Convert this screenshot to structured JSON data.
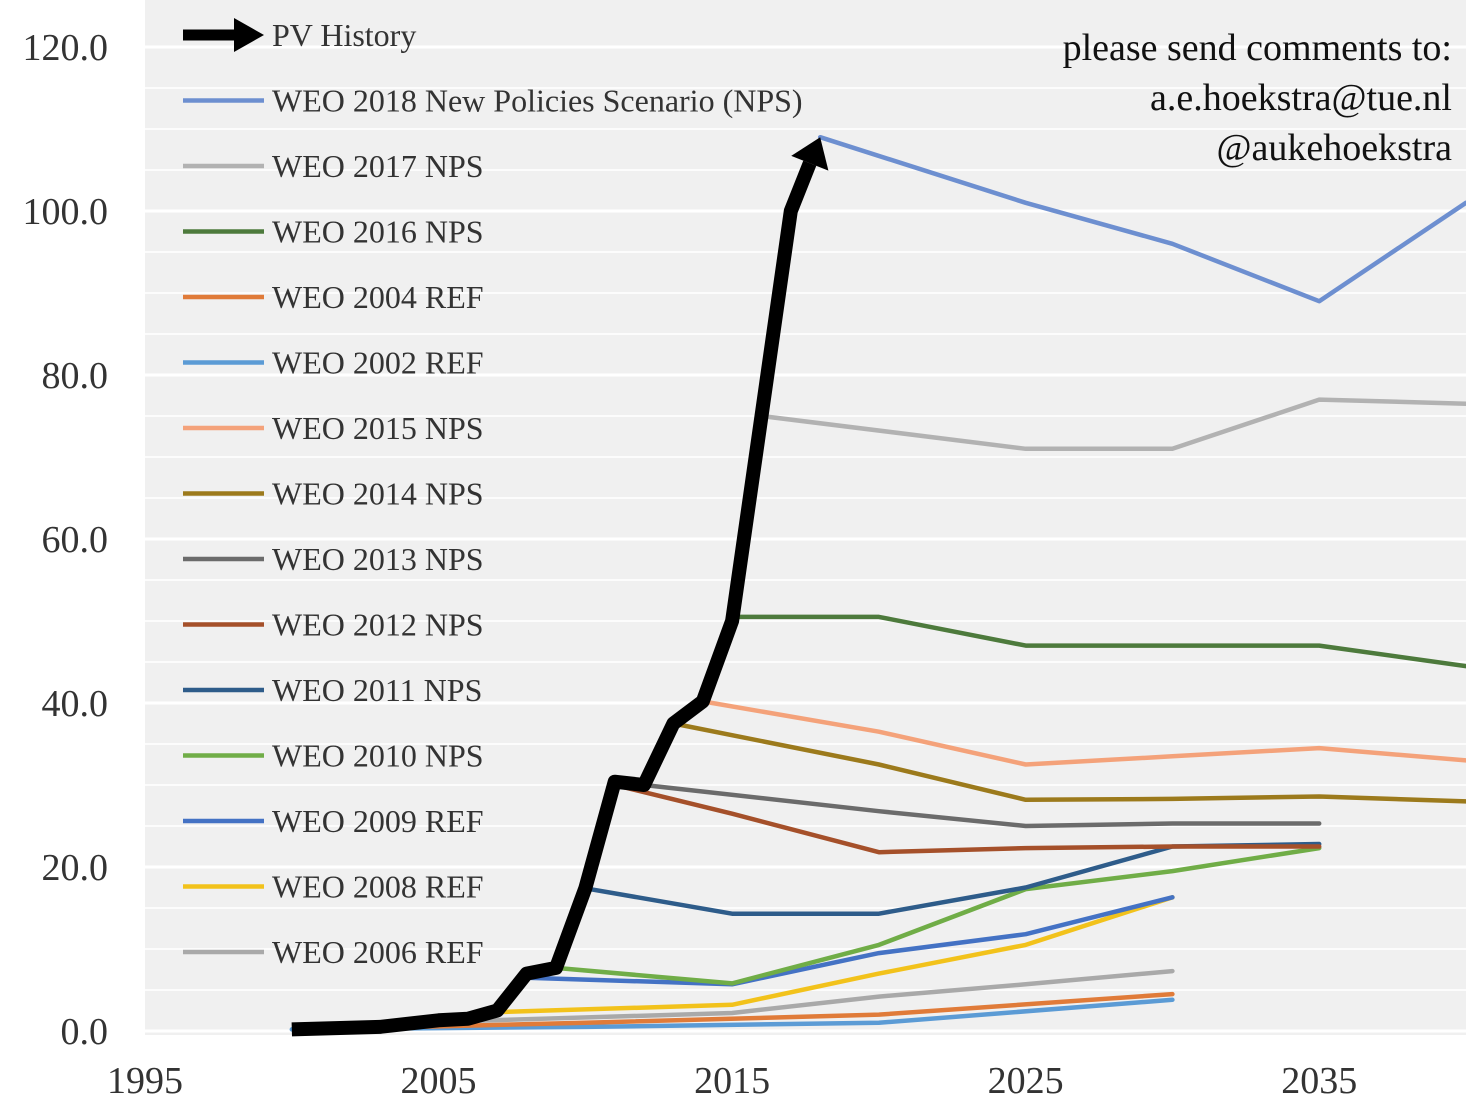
{
  "chart_data": {
    "type": "line",
    "title": "",
    "xlabel": "",
    "ylabel": "",
    "xlim": [
      1995,
      2040
    ],
    "ylim": [
      0,
      120
    ],
    "x_ticks": [
      "1995",
      "2005",
      "2015",
      "2025",
      "2035"
    ],
    "y_ticks": [
      "0.0",
      "20.0",
      "40.0",
      "60.0",
      "80.0",
      "100.0",
      "120.0"
    ],
    "grid": "horizontal",
    "background": "#f0f0f0",
    "legend_position": "top-left",
    "annotation": [
      "please send comments to:",
      "a.e.hoekstra@tue.nl",
      "@aukehoekstra"
    ],
    "series": [
      {
        "name": "PV History",
        "color": "#000000",
        "arrow": true,
        "x": [
          2000,
          2003,
          2005,
          2006,
          2007,
          2008,
          2009,
          2010,
          2011,
          2012,
          2013,
          2014,
          2015,
          2016,
          2017,
          2018
        ],
        "y": [
          0.2,
          0.5,
          1.3,
          1.5,
          2.5,
          7.0,
          7.7,
          17.4,
          30.4,
          30.0,
          37.5,
          40.2,
          50.0,
          75.0,
          100.0,
          109.0
        ]
      },
      {
        "name": "WEO 2018 New Policies Scenario (NPS)",
        "color": "#6d8fd0",
        "x": [
          2018,
          2025,
          2030,
          2035,
          2040
        ],
        "y": [
          109.0,
          101.0,
          96.0,
          89.0,
          101.0
        ]
      },
      {
        "name": "WEO 2017 NPS",
        "color": "#b2b2b2",
        "x": [
          2016,
          2025,
          2030,
          2035,
          2040
        ],
        "y": [
          75.0,
          71.0,
          71.0,
          77.0,
          76.5
        ]
      },
      {
        "name": "WEO 2016 NPS",
        "color": "#4d7a3c",
        "x": [
          2015,
          2020,
          2025,
          2030,
          2035,
          2040
        ],
        "y": [
          50.5,
          50.5,
          47.0,
          47.0,
          47.0,
          44.5
        ]
      },
      {
        "name": "WEO 2004 REF",
        "color": "#e07b39",
        "x": [
          2002,
          2010,
          2020,
          2030
        ],
        "y": [
          0.3,
          1.0,
          2.0,
          4.5
        ]
      },
      {
        "name": "WEO 2002 REF",
        "color": "#5b9bd5",
        "x": [
          2000,
          2010,
          2020,
          2030
        ],
        "y": [
          0.2,
          0.5,
          1.0,
          3.8
        ]
      },
      {
        "name": "WEO 2015 NPS",
        "color": "#f4a27a",
        "x": [
          2014,
          2020,
          2025,
          2030,
          2035,
          2040
        ],
        "y": [
          40.2,
          36.5,
          32.5,
          33.5,
          34.5,
          33.0
        ]
      },
      {
        "name": "WEO 2014 NPS",
        "color": "#9c7a1c",
        "x": [
          2013,
          2020,
          2025,
          2030,
          2035,
          2040
        ],
        "y": [
          37.5,
          32.5,
          28.2,
          28.3,
          28.6,
          28.0
        ]
      },
      {
        "name": "WEO 2013 NPS",
        "color": "#6b6b6b",
        "x": [
          2012,
          2020,
          2025,
          2030,
          2035
        ],
        "y": [
          30.0,
          26.8,
          25.0,
          25.3,
          25.3
        ]
      },
      {
        "name": "WEO 2012 NPS",
        "color": "#a5502a",
        "x": [
          2011,
          2015,
          2020,
          2025,
          2030,
          2035
        ],
        "y": [
          30.0,
          26.5,
          21.8,
          22.3,
          22.5,
          22.5
        ]
      },
      {
        "name": "WEO 2011 NPS",
        "color": "#2e5c8a",
        "x": [
          2010,
          2015,
          2020,
          2025,
          2030,
          2035
        ],
        "y": [
          17.4,
          14.3,
          14.3,
          17.5,
          22.5,
          22.8
        ]
      },
      {
        "name": "WEO 2010 NPS",
        "color": "#70ad47",
        "x": [
          2009,
          2015,
          2020,
          2025,
          2030,
          2035
        ],
        "y": [
          7.7,
          5.8,
          10.5,
          17.3,
          19.5,
          22.3
        ]
      },
      {
        "name": "WEO 2009 REF",
        "color": "#4472c4",
        "x": [
          2008,
          2015,
          2020,
          2025,
          2030
        ],
        "y": [
          6.5,
          5.7,
          9.5,
          11.8,
          16.3
        ]
      },
      {
        "name": "WEO 2008 REF",
        "color": "#f2c21b",
        "x": [
          2007,
          2015,
          2020,
          2025,
          2030
        ],
        "y": [
          2.3,
          3.2,
          7.0,
          10.5,
          16.3
        ]
      },
      {
        "name": "WEO 2006 REF",
        "color": "#a9a9a9",
        "x": [
          2004,
          2015,
          2020,
          2025,
          2030
        ],
        "y": [
          1.0,
          2.2,
          4.2,
          5.7,
          7.3
        ]
      }
    ]
  }
}
